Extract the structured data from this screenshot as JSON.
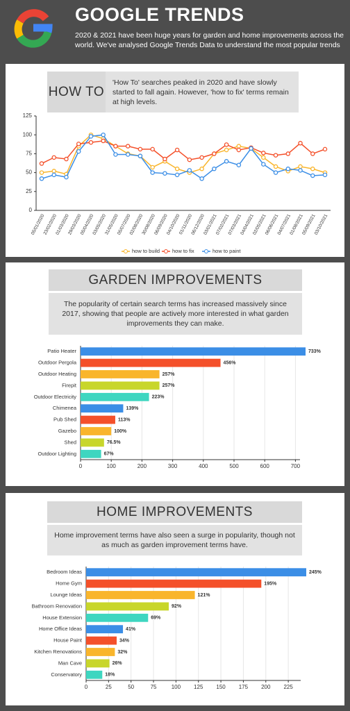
{
  "header": {
    "title": "GOOGLE TRENDS",
    "subtitle": "2020 & 2021 have been huge years for garden and home improvements across the world. We've analysed Google Trends Data to understand the most popular trends"
  },
  "chart_data": [
    {
      "type": "line",
      "title": "HOW TO",
      "description": "'How To' searches peaked in 2020 and have slowly started to fall again. However, 'how to fix' terms remain at high levels.",
      "categories": [
        "05/01/2020",
        "23/02/2020",
        "01/03/2020",
        "29/03/2020",
        "05/04/2020",
        "03/05/2020",
        "31/05/2020",
        "05/07/2020",
        "02/08/2020",
        "30/08/2020",
        "06/09/2020",
        "04/10/2020",
        "01/11/2020",
        "06/12/2020",
        "03/01/2021",
        "07/02/2021",
        "07/03/2021",
        "04/04/2021",
        "02/05/2021",
        "06/06/2021",
        "04/07/2021",
        "01/08/2021",
        "05/09/2021",
        "03/10/2021"
      ],
      "series": [
        {
          "name": "how to build",
          "color": "#f9b52c",
          "values": [
            50,
            52,
            48,
            85,
            100,
            95,
            85,
            75,
            72,
            57,
            65,
            55,
            50,
            55,
            75,
            80,
            85,
            82,
            70,
            58,
            52,
            58,
            55,
            50
          ]
        },
        {
          "name": "how to fix",
          "color": "#f4502a",
          "values": [
            62,
            70,
            68,
            88,
            90,
            92,
            85,
            85,
            81,
            81,
            68,
            80,
            67,
            70,
            75,
            87,
            80,
            83,
            76,
            73,
            75,
            89,
            75,
            81
          ]
        },
        {
          "name": "how to paint",
          "color": "#3b8ee6",
          "values": [
            42,
            47,
            44,
            78,
            98,
            100,
            74,
            74,
            72,
            50,
            49,
            47,
            53,
            42,
            55,
            65,
            60,
            82,
            61,
            50,
            55,
            53,
            46,
            47
          ]
        }
      ],
      "ylim": [
        0,
        125
      ],
      "yticks": [
        0,
        25,
        50,
        75,
        100,
        125
      ],
      "grid": false,
      "legend": "bottom"
    },
    {
      "type": "hbar",
      "title": "GARDEN IMPROVEMENTS",
      "description": "The popularity of certain search terms has increased massively since 2017, showing that people are actively more interested in what garden improvements they can make.",
      "categories": [
        "Patio Heater",
        "Outdoor Pergola",
        "Outdoor Heating",
        "Firepit",
        "Outdoor Electricity",
        "Chimenea",
        "Pub Shed",
        "Gazebo",
        "Shed",
        "Outdoor Lighting"
      ],
      "values": [
        733,
        456,
        257,
        257,
        223,
        139,
        113,
        100,
        76.5,
        67
      ],
      "value_labels": [
        "733%",
        "456%",
        "257%",
        "257%",
        "223%",
        "139%",
        "113%",
        "100%",
        "76.5%",
        "67%"
      ],
      "colors": [
        "#3b8ee6",
        "#f4502a",
        "#f9b52c",
        "#c8d62b",
        "#3ed6c0",
        "#3b8ee6",
        "#f4502a",
        "#f9b52c",
        "#c8d62b",
        "#3ed6c0"
      ],
      "xlim": [
        0,
        733
      ],
      "xticks": [
        0,
        100,
        200,
        300,
        400,
        500,
        600,
        700
      ],
      "grid": true
    },
    {
      "type": "hbar",
      "title": "HOME IMPROVEMENTS",
      "description": "Home improvement terms have also seen a surge in popularity, though not as much as garden improvement terms have.",
      "categories": [
        "Bedroom Ideas",
        "Home Gym",
        "Lounge Ideas",
        "Bathroom Renovation",
        "House Extension",
        "Home Office Ideas",
        "House Paint",
        "Kitchen Renovations",
        "Man Cave",
        "Conservatory"
      ],
      "values": [
        245,
        195,
        121,
        92,
        69,
        41,
        34,
        32,
        26,
        18
      ],
      "value_labels": [
        "245%",
        "195%",
        "121%",
        "92%",
        "69%",
        "41%",
        "34%",
        "32%",
        "26%",
        "18%"
      ],
      "colors": [
        "#3b8ee6",
        "#f4502a",
        "#f9b52c",
        "#c8d62b",
        "#3ed6c0",
        "#3b8ee6",
        "#f4502a",
        "#f9b52c",
        "#c8d62b",
        "#3ed6c0"
      ],
      "xlim": [
        0,
        245
      ],
      "xticks": [
        0,
        25,
        50,
        75,
        100,
        125,
        150,
        175,
        200,
        225
      ],
      "grid": true
    }
  ]
}
